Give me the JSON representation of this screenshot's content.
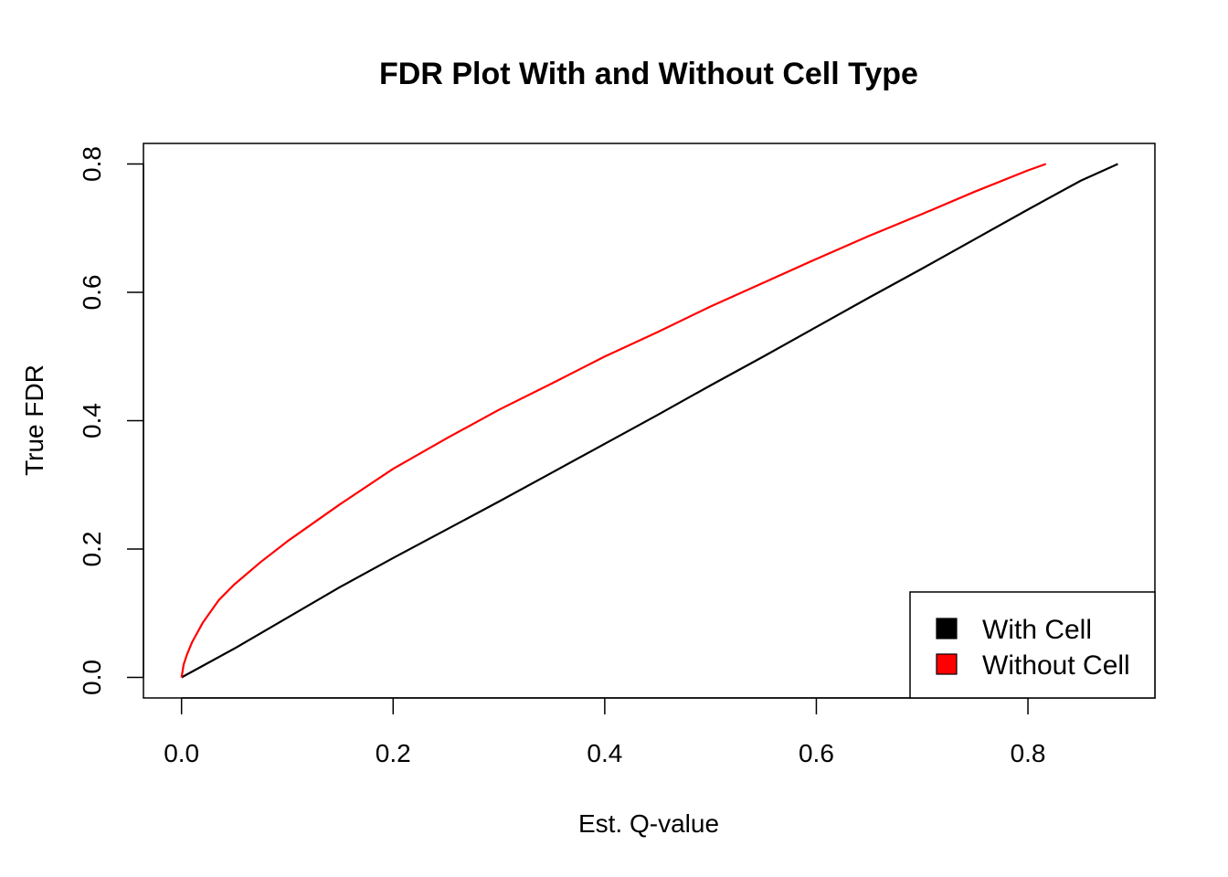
{
  "chart_data": {
    "type": "line",
    "title": "FDR Plot With and Without Cell Type",
    "xlabel": "Est. Q-value",
    "ylabel": "True FDR",
    "xlim": [
      -0.036,
      0.92
    ],
    "ylim": [
      -0.032,
      0.832
    ],
    "xticks": [
      0.0,
      0.2,
      0.4,
      0.6,
      0.8
    ],
    "xtick_labels": [
      "0.0",
      "0.2",
      "0.4",
      "0.6",
      "0.8"
    ],
    "yticks": [
      0.0,
      0.2,
      0.4,
      0.6,
      0.8
    ],
    "ytick_labels": [
      "0.0",
      "0.2",
      "0.4",
      "0.6",
      "0.8"
    ],
    "grid": false,
    "legend_position": "bottom-right",
    "series": [
      {
        "name": "With Cell",
        "color": "#000000",
        "x": [
          0.0,
          0.02,
          0.05,
          0.1,
          0.15,
          0.2,
          0.25,
          0.3,
          0.35,
          0.4,
          0.45,
          0.5,
          0.55,
          0.6,
          0.65,
          0.7,
          0.75,
          0.8,
          0.85,
          0.885
        ],
        "y": [
          0.0,
          0.018,
          0.045,
          0.093,
          0.141,
          0.186,
          0.23,
          0.274,
          0.319,
          0.364,
          0.409,
          0.455,
          0.5,
          0.546,
          0.592,
          0.637,
          0.683,
          0.729,
          0.774,
          0.8
        ]
      },
      {
        "name": "Without Cell",
        "color": "#ff0000",
        "x": [
          0.0,
          0.002,
          0.005,
          0.01,
          0.02,
          0.035,
          0.05,
          0.075,
          0.1,
          0.15,
          0.2,
          0.25,
          0.3,
          0.35,
          0.4,
          0.45,
          0.5,
          0.55,
          0.6,
          0.65,
          0.7,
          0.75,
          0.8,
          0.817
        ],
        "y": [
          0.0,
          0.02,
          0.035,
          0.055,
          0.085,
          0.12,
          0.145,
          0.18,
          0.212,
          0.27,
          0.325,
          0.372,
          0.417,
          0.458,
          0.5,
          0.538,
          0.578,
          0.615,
          0.652,
          0.688,
          0.722,
          0.757,
          0.79,
          0.8
        ]
      }
    ]
  }
}
